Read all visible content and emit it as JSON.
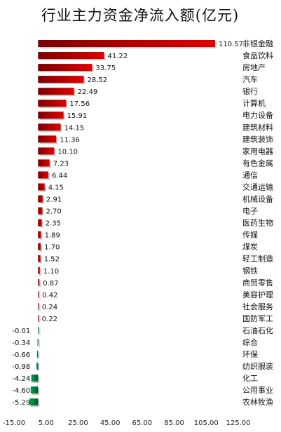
{
  "chart_data": {
    "type": "bar",
    "orientation": "horizontal",
    "title": "行业主力资金净流入额(亿元)",
    "xlabel": "",
    "ylabel": "",
    "xlim": [
      -15,
      125
    ],
    "ticks": [
      "-15.00",
      "5.00",
      "25.00",
      "45.00",
      "65.00",
      "85.00",
      "105.00",
      "125.00"
    ],
    "tick_values": [
      -15,
      5,
      25,
      45,
      65,
      85,
      105,
      125
    ],
    "grid": false,
    "legend": "none",
    "categories": [
      "非银金融",
      "食品饮料",
      "房地产",
      "汽车",
      "银行",
      "计算机",
      "电力设备",
      "建筑材料",
      "建筑装饰",
      "家用电器",
      "有色金属",
      "通信",
      "交通运输",
      "机械设备",
      "电子",
      "医药生物",
      "传媒",
      "煤炭",
      "轻工制造",
      "钢铁",
      "商贸零售",
      "美容护理",
      "社会服务",
      "国防军工",
      "石油石化",
      "综合",
      "环保",
      "纺织服装",
      "化工",
      "公用事业",
      "农林牧渔"
    ],
    "values": [
      110.57,
      41.22,
      33.75,
      28.52,
      22.49,
      17.56,
      15.91,
      14.15,
      11.36,
      10.1,
      7.23,
      6.44,
      4.15,
      2.91,
      2.7,
      2.35,
      1.89,
      1.7,
      1.52,
      1.1,
      0.87,
      0.42,
      0.24,
      0.22,
      -0.01,
      -0.34,
      -0.66,
      -0.98,
      -4.24,
      -4.6,
      -5.29
    ],
    "value_labels": [
      "110.57",
      "41.22",
      "33.75",
      "28.52",
      "22.49",
      "17.56",
      "15.91",
      "14.15",
      "11.36",
      "10.10",
      "7.23",
      "6.44",
      "4.15",
      "2.91",
      "2.70",
      "2.35",
      "1.89",
      "1.70",
      "1.52",
      "1.10",
      "0.87",
      "0.42",
      "0.24",
      "0.22",
      "-0.01",
      "-0.34",
      "-0.66",
      "-0.98",
      "-4.24",
      "-4.60",
      "-5.29"
    ],
    "colors": {
      "positive": "#c00000",
      "positive_dark": "#7a0000",
      "negative": "#00a050",
      "negative_dark": "#005a2c",
      "shadow": "#c8c8c8"
    }
  }
}
